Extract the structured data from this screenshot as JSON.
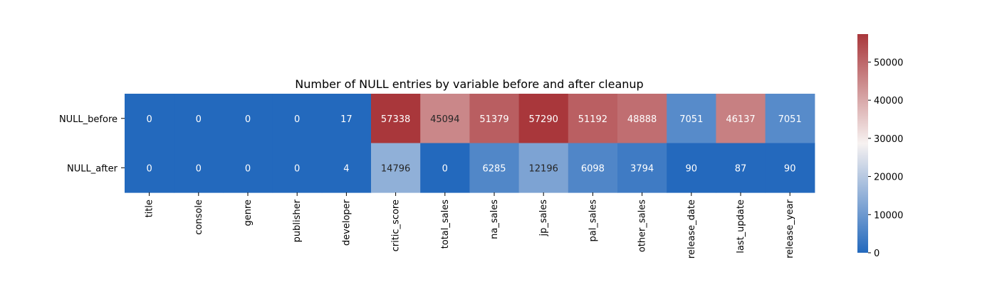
{
  "chart_data": {
    "type": "heatmap",
    "title": "Number of NULL entries by variable before and after cleanup",
    "xlabel": "",
    "ylabel": "",
    "columns": [
      "title",
      "console",
      "genre",
      "publisher",
      "developer",
      "critic_score",
      "total_sales",
      "na_sales",
      "jp_sales",
      "pal_sales",
      "other_sales",
      "release_date",
      "last_update",
      "release_year"
    ],
    "rows": [
      "NULL_before",
      "NULL_after"
    ],
    "values": [
      [
        0,
        0,
        0,
        0,
        17,
        57338,
        45094,
        51379,
        57290,
        51192,
        48888,
        7051,
        46137,
        7051
      ],
      [
        0,
        0,
        0,
        0,
        4,
        14796,
        0,
        6285,
        12196,
        6098,
        3794,
        90,
        87,
        90
      ]
    ],
    "colorbar": {
      "min": 0,
      "max": 57338,
      "ticks": [
        0,
        10000,
        20000,
        30000,
        40000,
        50000
      ],
      "colormap": "vlag",
      "low_color": "#2369bd",
      "mid_color": "#f7f2f1",
      "high_color": "#a9373b"
    }
  }
}
